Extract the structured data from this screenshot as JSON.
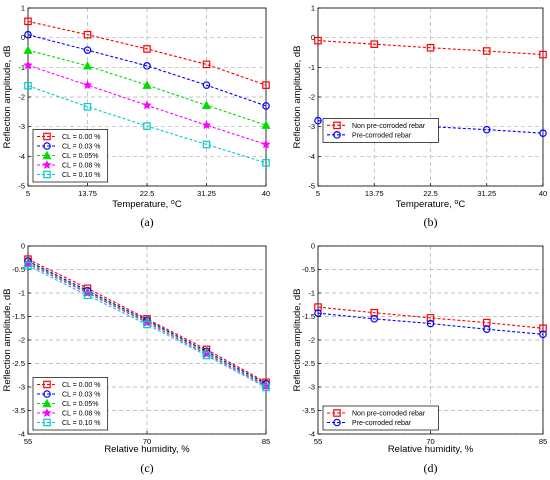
{
  "chart_data": [
    {
      "id": "a",
      "type": "line",
      "label": "(a)",
      "xlabel": "Temperature, ",
      "xlabel_unit": "oC",
      "ylabel": "Reflection amplitude, dB",
      "x": [
        5,
        13.75,
        22.5,
        31.25,
        40
      ],
      "x_tick_labels": [
        "5",
        "13.75",
        "22.5",
        "31.25",
        "40"
      ],
      "xlim": [
        5,
        40
      ],
      "ylim": [
        -5,
        1
      ],
      "y_ticks": [
        -5,
        -4,
        -3,
        -2,
        -1,
        0,
        1
      ],
      "y_tick_labels": [
        "-5",
        "-4",
        "-3",
        "-2",
        "-1",
        "0",
        "1"
      ],
      "grid": true,
      "legend_position": "bottom-left",
      "series": [
        {
          "name": "CL = 0.00 %",
          "color": "#ff0000",
          "marker": "square",
          "values": [
            0.55,
            0.1,
            -0.38,
            -0.9,
            -1.6
          ]
        },
        {
          "name": "CL = 0.03 %",
          "color": "#0000ff",
          "marker": "circle",
          "values": [
            0.1,
            -0.42,
            -0.95,
            -1.6,
            -2.3
          ]
        },
        {
          "name": "CL = 0.05%",
          "color": "#00dd00",
          "marker": "triangle",
          "values": [
            -0.42,
            -0.95,
            -1.6,
            -2.28,
            -2.95
          ]
        },
        {
          "name": "CL = 0.08 %",
          "color": "#ff00ff",
          "marker": "star",
          "values": [
            -0.93,
            -1.6,
            -2.28,
            -2.95,
            -3.6
          ]
        },
        {
          "name": "CL = 0.10 %",
          "color": "#00cccc",
          "marker": "square",
          "values": [
            -1.62,
            -2.33,
            -2.98,
            -3.6,
            -4.22
          ]
        }
      ]
    },
    {
      "id": "b",
      "type": "line",
      "label": "(b)",
      "xlabel": "Temperature, ",
      "xlabel_unit": "oC",
      "ylabel": "Reflection amplitude, dB",
      "x": [
        5,
        13.75,
        22.5,
        31.25,
        40
      ],
      "x_tick_labels": [
        "5",
        "13.75",
        "22.5",
        "31.25",
        "40"
      ],
      "xlim": [
        5,
        40
      ],
      "ylim": [
        -5,
        1
      ],
      "y_ticks": [
        -5,
        -4,
        -3,
        -2,
        -1,
        0,
        1
      ],
      "y_tick_labels": [
        "-5",
        "-4",
        "-3",
        "-2",
        "-1",
        "0",
        "1"
      ],
      "grid": true,
      "legend_position": "middle-left",
      "series": [
        {
          "name": "Non pre-corroded rebar",
          "color": "#ff0000",
          "marker": "square",
          "values": [
            -0.1,
            -0.22,
            -0.34,
            -0.45,
            -0.57
          ]
        },
        {
          "name": "Pre-corroded rebar",
          "color": "#0000ff",
          "marker": "circle",
          "values": [
            -2.8,
            -2.9,
            -3.0,
            -3.1,
            -3.22
          ]
        }
      ]
    },
    {
      "id": "c",
      "type": "line",
      "label": "(c)",
      "xlabel": "Relative humidity, %",
      "xlabel_unit": "",
      "ylabel": "Reflection amplitude, dB",
      "x": [
        55,
        62.5,
        70,
        77.5,
        85
      ],
      "x_tick_labels": [
        "55",
        "70",
        "85"
      ],
      "x_ticks": [
        55,
        70,
        85
      ],
      "xlim": [
        55,
        85
      ],
      "ylim": [
        -4,
        0
      ],
      "y_ticks": [
        -4,
        -3.5,
        -3,
        -2.5,
        -2,
        -1.5,
        -1,
        -0.5,
        0
      ],
      "y_tick_labels": [
        "-4",
        "-3.5",
        "-3",
        "-2.5",
        "-2",
        "-1.5",
        "-1",
        "-0.5",
        "0"
      ],
      "grid": true,
      "legend_position": "bottom-left",
      "series": [
        {
          "name": "CL = 0.00 %",
          "color": "#ff0000",
          "marker": "square",
          "values": [
            -0.28,
            -0.9,
            -1.55,
            -2.2,
            -2.9
          ]
        },
        {
          "name": "CL = 0.03 %",
          "color": "#0000ff",
          "marker": "circle",
          "values": [
            -0.32,
            -0.95,
            -1.58,
            -2.24,
            -2.93
          ]
        },
        {
          "name": "CL = 0.05%",
          "color": "#00dd00",
          "marker": "triangle",
          "values": [
            -0.35,
            -0.98,
            -1.6,
            -2.27,
            -2.96
          ]
        },
        {
          "name": "CL = 0.08 %",
          "color": "#ff00ff",
          "marker": "star",
          "values": [
            -0.38,
            -1.0,
            -1.63,
            -2.3,
            -2.98
          ]
        },
        {
          "name": "CL = 0.10 %",
          "color": "#00cccc",
          "marker": "square",
          "values": [
            -0.42,
            -1.05,
            -1.67,
            -2.33,
            -3.01
          ]
        }
      ]
    },
    {
      "id": "d",
      "type": "line",
      "label": "(d)",
      "xlabel": "Relative humidity, %",
      "xlabel_unit": "",
      "ylabel": "Reflection amplitude, dB",
      "x": [
        55,
        62.5,
        70,
        77.5,
        85
      ],
      "x_tick_labels": [
        "55",
        "70",
        "85"
      ],
      "x_ticks": [
        55,
        70,
        85
      ],
      "xlim": [
        55,
        85
      ],
      "ylim": [
        -4,
        0
      ],
      "y_ticks": [
        -4,
        -3.5,
        -3,
        -2.5,
        -2,
        -1.5,
        -1,
        -0.5,
        0
      ],
      "y_tick_labels": [
        "-4",
        "-3.5",
        "-3",
        "-2.5",
        "-2",
        "-1.5",
        "-1",
        "-0.5",
        "0"
      ],
      "grid": true,
      "legend_position": "bottom-left",
      "series": [
        {
          "name": "Non pre-corroded rebar",
          "color": "#ff0000",
          "marker": "square",
          "values": [
            -1.3,
            -1.42,
            -1.53,
            -1.63,
            -1.75
          ]
        },
        {
          "name": "Pre-corroded rebar",
          "color": "#0000ff",
          "marker": "circle",
          "values": [
            -1.43,
            -1.55,
            -1.65,
            -1.77,
            -1.88
          ]
        }
      ]
    }
  ]
}
